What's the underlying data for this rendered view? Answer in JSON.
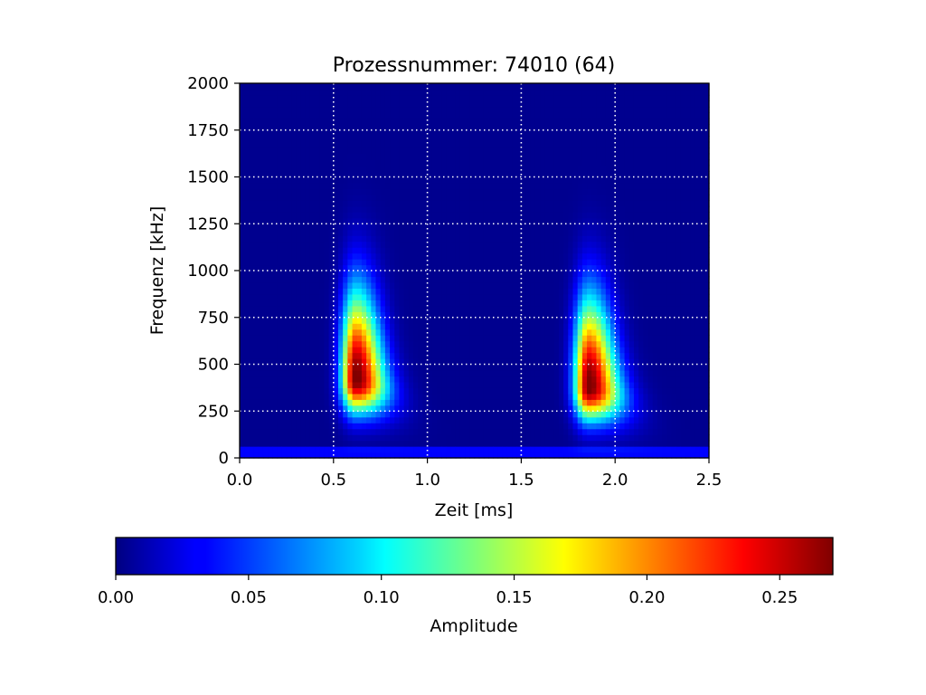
{
  "chart_data": {
    "type": "heatmap",
    "title": "Prozessnummer: 74010 (64)",
    "xlabel": "Zeit [ms]",
    "ylabel": "Frequenz [kHz]",
    "xlim": [
      0.0,
      2.5
    ],
    "ylim": [
      0,
      2000
    ],
    "xticks": [
      "0.0",
      "0.5",
      "1.0",
      "1.5",
      "2.0",
      "2.5"
    ],
    "yticks": [
      "0",
      "250",
      "500",
      "750",
      "1000",
      "1250",
      "1500",
      "1750",
      "2000"
    ],
    "grid": true,
    "grid_style": "dotted-white",
    "colormap": "jet",
    "colorbar": {
      "label": "Amplitude",
      "range": [
        0.0,
        0.27
      ],
      "ticks": [
        "0.00",
        "0.05",
        "0.10",
        "0.15",
        "0.20",
        "0.25"
      ],
      "orientation": "horizontal",
      "placement": "bottom"
    },
    "peaks": [
      {
        "time_ms": 0.62,
        "freq_khz": 420,
        "amplitude": 0.27
      },
      {
        "time_ms": 1.86,
        "freq_khz": 380,
        "amplitude": 0.27
      }
    ],
    "baseline_band": {
      "freq_khz": [
        15,
        60
      ],
      "amplitude": 0.03
    },
    "grid_resolution": {
      "time_bins": 100,
      "freq_bins": 64
    }
  }
}
